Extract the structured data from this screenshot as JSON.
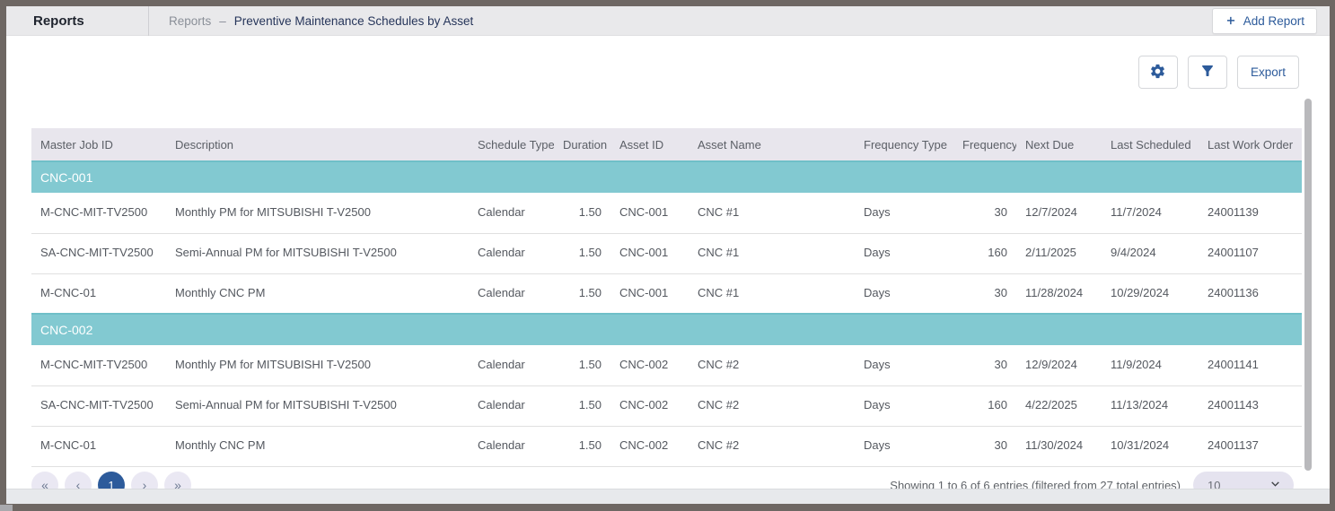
{
  "header": {
    "title": "Reports",
    "breadcrumb": {
      "parent": "Reports",
      "separator": "–",
      "current": "Preventive Maintenance Schedules by Asset"
    },
    "add_report_label": "Add Report"
  },
  "toolbar": {
    "export_label": "Export"
  },
  "icons": {
    "add": "plus",
    "settings": "gear",
    "filter": "funnel",
    "page_size_caret": "chevron-down"
  },
  "table": {
    "columns": [
      {
        "label": "Master Job ID",
        "align": "left"
      },
      {
        "label": "Description",
        "align": "left"
      },
      {
        "label": "Schedule Type",
        "align": "left"
      },
      {
        "label": "Duration",
        "align": "right"
      },
      {
        "label": "Asset ID",
        "align": "left"
      },
      {
        "label": "Asset Name",
        "align": "left"
      },
      {
        "label": "Frequency Type",
        "align": "left"
      },
      {
        "label": "Frequency",
        "align": "right"
      },
      {
        "label": "Next Due",
        "align": "left"
      },
      {
        "label": "Last Scheduled",
        "align": "left"
      },
      {
        "label": "Last Work Order",
        "align": "left"
      }
    ],
    "groups": [
      {
        "name": "CNC-001",
        "rows": [
          [
            "M-CNC-MIT-TV2500",
            "Monthly PM for MITSUBISHI T-V2500",
            "Calendar",
            "1.50",
            "CNC-001",
            "CNC #1",
            "Days",
            "30",
            "12/7/2024",
            "11/7/2024",
            "24001139"
          ],
          [
            "SA-CNC-MIT-TV2500",
            "Semi-Annual PM for MITSUBISHI T-V2500",
            "Calendar",
            "1.50",
            "CNC-001",
            "CNC #1",
            "Days",
            "160",
            "2/11/2025",
            "9/4/2024",
            "24001107"
          ],
          [
            "M-CNC-01",
            "Monthly CNC PM",
            "Calendar",
            "1.50",
            "CNC-001",
            "CNC #1",
            "Days",
            "30",
            "11/28/2024",
            "10/29/2024",
            "24001136"
          ]
        ]
      },
      {
        "name": "CNC-002",
        "rows": [
          [
            "M-CNC-MIT-TV2500",
            "Monthly PM for MITSUBISHI T-V2500",
            "Calendar",
            "1.50",
            "CNC-002",
            "CNC #2",
            "Days",
            "30",
            "12/9/2024",
            "11/9/2024",
            "24001141"
          ],
          [
            "SA-CNC-MIT-TV2500",
            "Semi-Annual PM for MITSUBISHI T-V2500",
            "Calendar",
            "1.50",
            "CNC-002",
            "CNC #2",
            "Days",
            "160",
            "4/22/2025",
            "11/13/2024",
            "24001143"
          ],
          [
            "M-CNC-01",
            "Monthly CNC PM",
            "Calendar",
            "1.50",
            "CNC-002",
            "CNC #2",
            "Days",
            "30",
            "11/30/2024",
            "10/31/2024",
            "24001137"
          ]
        ]
      }
    ]
  },
  "pagination": {
    "first_glyph": "«",
    "prev_glyph": "‹",
    "current_page": "1",
    "next_glyph": "›",
    "last_glyph": "»",
    "summary": "Showing 1 to 6 of 6 entries (filtered from 27 total entries)",
    "page_size": "10"
  },
  "colors": {
    "accent_blue": "#2d5b9b",
    "group_row_bg": "#82c9d1",
    "table_header_bg": "#e8e6ed",
    "topbar_bg": "#e9e9eb",
    "frame": "#6e6763"
  }
}
